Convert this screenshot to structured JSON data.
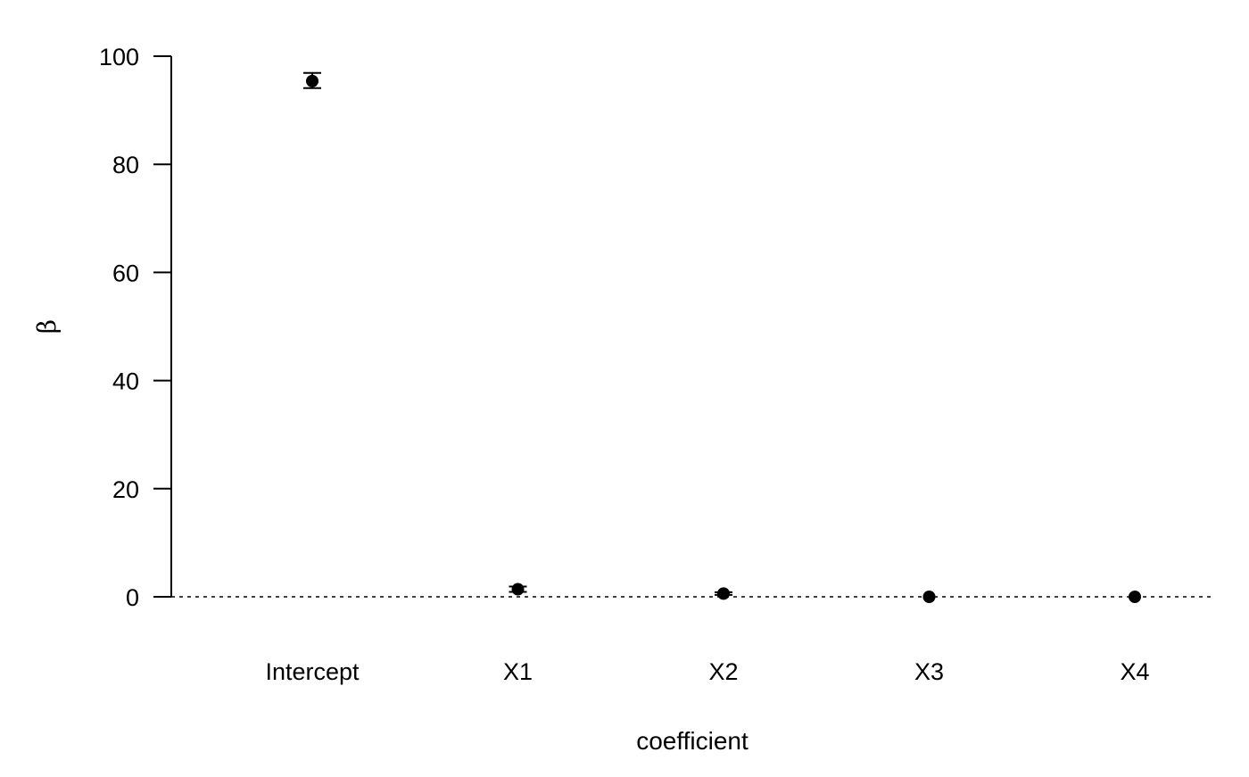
{
  "chart_data": {
    "type": "scatter",
    "xlabel": "coefficient",
    "ylabel": "β",
    "categories": [
      "Intercept",
      "X1",
      "X2",
      "X3",
      "X4"
    ],
    "series": [
      {
        "values": [
          95.4,
          1.4,
          0.6,
          0.0,
          0.0
        ],
        "ci_lower": [
          94.1,
          0.9,
          0.35,
          -0.1,
          -0.1
        ],
        "ci_upper": [
          96.9,
          1.9,
          0.85,
          0.1,
          0.1
        ]
      }
    ],
    "ylim": [
      0,
      100
    ],
    "yticks": [
      0,
      20,
      40,
      60,
      80,
      100
    ],
    "reference_line": {
      "y": 0,
      "style": "dotted"
    },
    "grid": false,
    "colors": {
      "marker": "#000000",
      "axis": "#000000"
    }
  }
}
